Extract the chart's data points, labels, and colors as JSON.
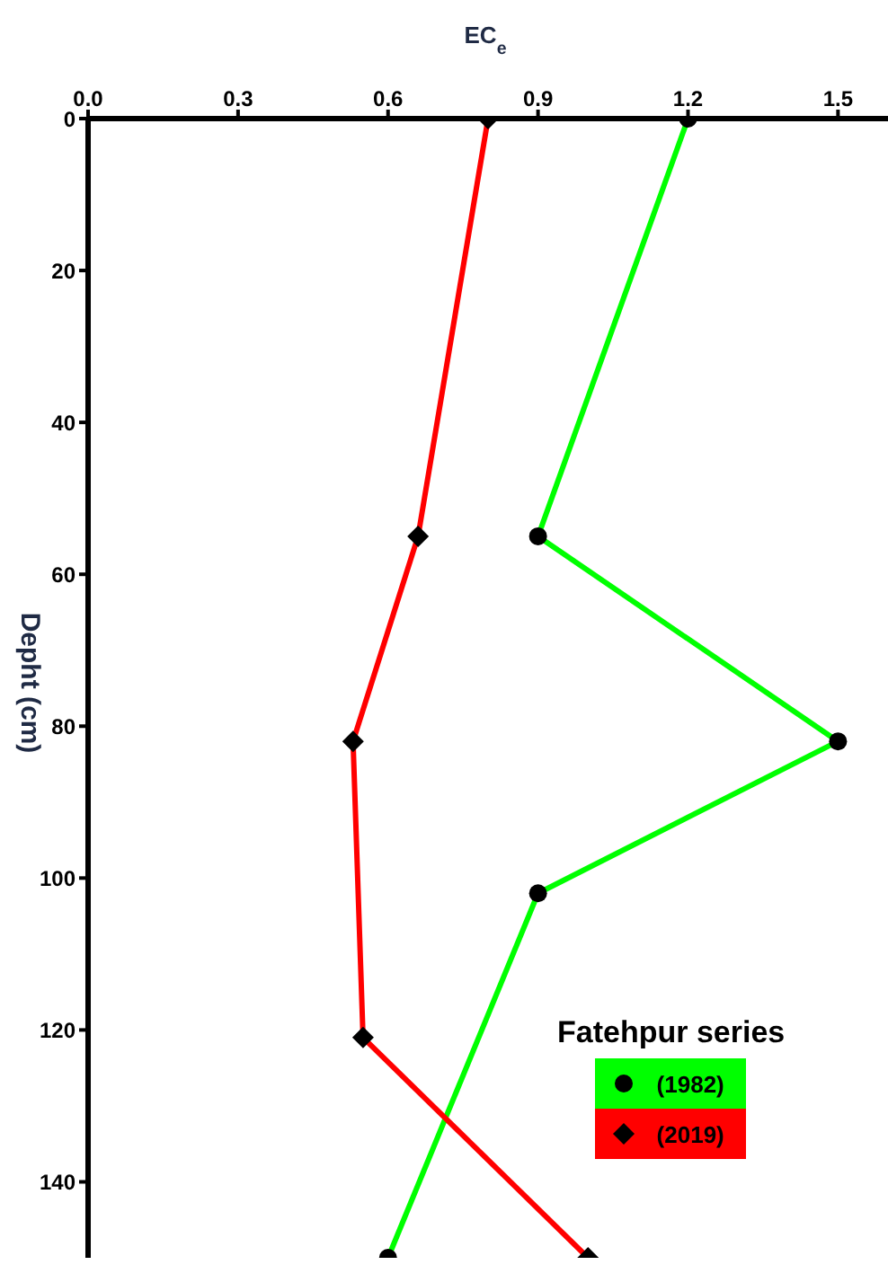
{
  "chart_data": {
    "type": "line",
    "xlabel": "EC$_{e}$",
    "ylabel": "Depht (cm)",
    "legend_title": "Fatehpur series",
    "xlim": [
      0,
      1.6
    ],
    "xticks": [
      {
        "value": 0,
        "label": "0.0"
      },
      {
        "value": 0.3,
        "label": "0.3"
      },
      {
        "value": 0.6,
        "label": "0.6"
      },
      {
        "value": 0.9,
        "label": "0.9"
      },
      {
        "value": 1.2,
        "label": "1.2"
      },
      {
        "value": 1.5,
        "label": "1.5"
      }
    ],
    "ylim": [
      150,
      0
    ],
    "yticks": [
      0,
      20,
      40,
      60,
      80,
      100,
      120,
      140
    ],
    "grid": false,
    "legend": "bottom right",
    "line_style": "solid",
    "series": [
      {
        "name": "(1982)",
        "color": "#00ff00",
        "marker": "circle",
        "x": [
          1.2,
          0.9,
          1.5,
          0.9,
          0.6
        ],
        "values": [
          0,
          55,
          82,
          102,
          150
        ]
      },
      {
        "name": "(2019)",
        "color": "#ff0000",
        "marker": "diamond",
        "x": [
          0.8,
          0.66,
          0.53,
          0.55,
          1.0
        ],
        "values": [
          0,
          55,
          82,
          121,
          150
        ]
      }
    ]
  }
}
